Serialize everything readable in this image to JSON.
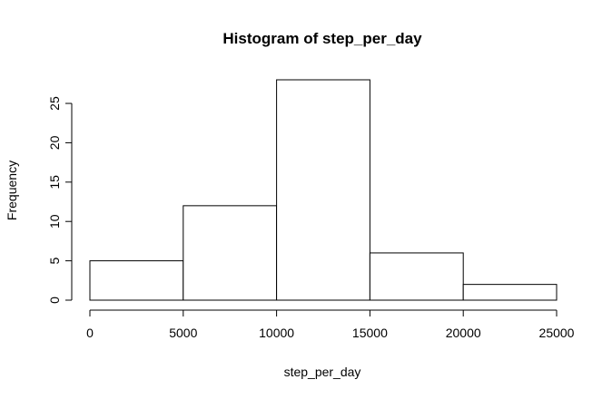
{
  "chart_data": {
    "type": "bar",
    "title": "Histogram of step_per_day",
    "xlabel": "step_per_day",
    "ylabel": "Frequency",
    "bins": [
      {
        "start": 0,
        "end": 5000,
        "count": 5
      },
      {
        "start": 5000,
        "end": 10000,
        "count": 12
      },
      {
        "start": 10000,
        "end": 15000,
        "count": 28
      },
      {
        "start": 15000,
        "end": 20000,
        "count": 6
      },
      {
        "start": 20000,
        "end": 25000,
        "count": 2
      }
    ],
    "x_ticks": [
      "0",
      "5000",
      "10000",
      "15000",
      "20000",
      "25000"
    ],
    "y_ticks": [
      "0",
      "5",
      "10",
      "15",
      "20",
      "25"
    ],
    "xlim": [
      0,
      25000
    ],
    "ylim": [
      0,
      28
    ],
    "grid": false
  }
}
